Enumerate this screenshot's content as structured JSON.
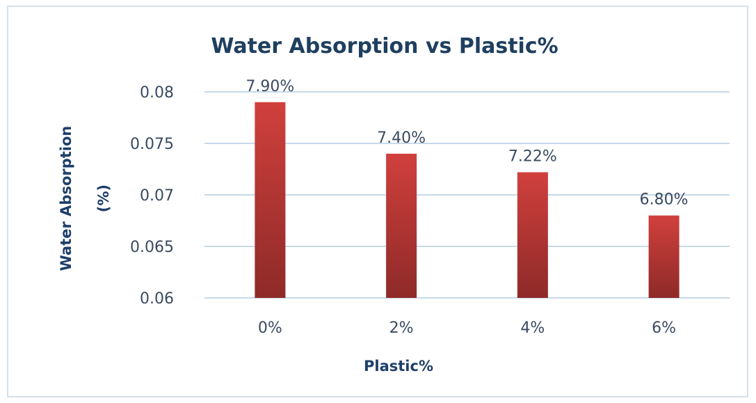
{
  "chart_data": {
    "type": "bar",
    "title": "Water Absorption vs Plastic%",
    "xlabel": "Plastic%",
    "ylabel_lines": [
      "Water Absorption",
      "(%)"
    ],
    "categories": [
      "0%",
      "2%",
      "4%",
      "6%"
    ],
    "values": [
      0.079,
      0.074,
      0.0722,
      0.068
    ],
    "data_labels": [
      "7.90%",
      "7.40%",
      "7.22%",
      "6.80%"
    ],
    "ylim": [
      0.06,
      0.08
    ],
    "yticks": [
      0.06,
      0.065,
      0.07,
      0.075,
      0.08
    ],
    "ytick_labels": [
      "0.06",
      "0.065",
      "0.07",
      "0.075",
      "0.08"
    ],
    "grid": true,
    "legend": "none",
    "colors": {
      "bar_top": "#d0403d",
      "bar_bottom": "#8e2a28",
      "gridline": "#c7d9ea",
      "title": "#1f3f5f",
      "axis_title": "#1f3f6a"
    }
  }
}
